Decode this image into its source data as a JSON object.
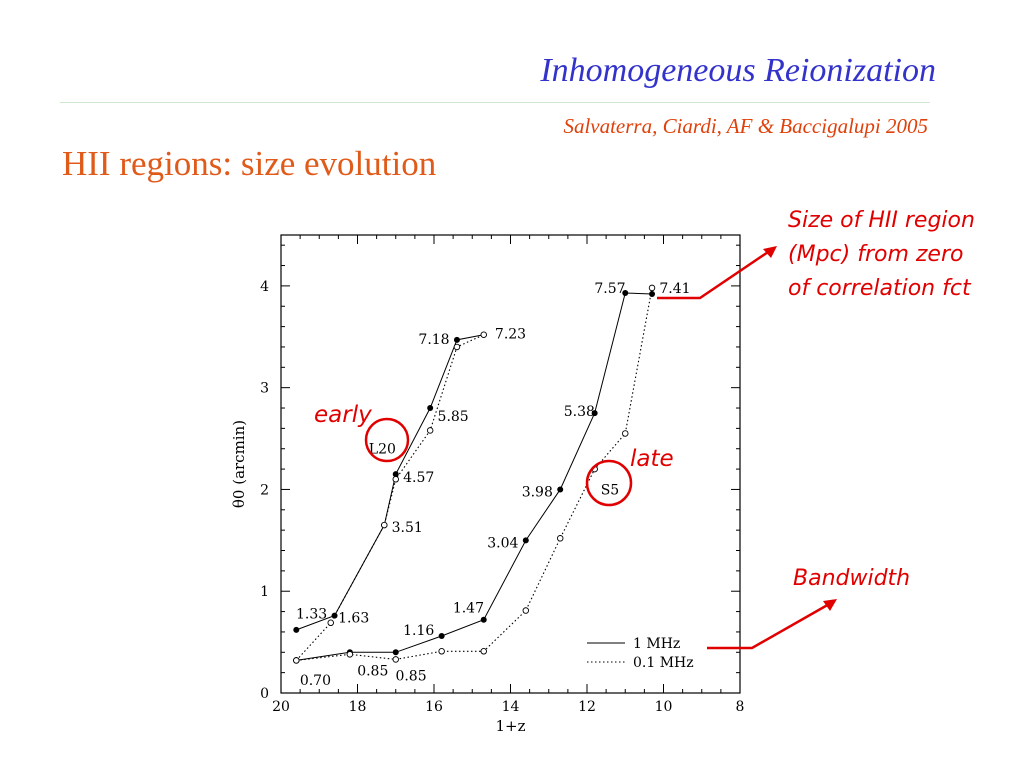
{
  "slide": {
    "title": "Inhomogeneous Reionization",
    "citation": "Salvaterra, Ciardi, AF & Baccigalupi 2005",
    "heading": "HII regions: size evolution"
  },
  "annotations": {
    "size_note": [
      "Size of HII region",
      "(Mpc) from zero",
      "of correlation fct"
    ],
    "bandwidth_note": "Bandwidth",
    "early": "early",
    "late": "late",
    "color": "#e00000"
  },
  "chart_data": {
    "type": "line",
    "xlabel": "1+z",
    "ylabel": "θ0 (arcmin)",
    "xlim": [
      20,
      8
    ],
    "ylim": [
      0,
      4.5
    ],
    "xticks": [
      20,
      18,
      16,
      14,
      12,
      10,
      8
    ],
    "yticks": [
      0,
      1,
      2,
      3,
      4
    ],
    "legend": {
      "position": "bottom-right",
      "entries": [
        "1 MHz",
        "0.1 MHz"
      ]
    },
    "models": [
      "L20",
      "S5"
    ],
    "series": [
      {
        "name": "1 MHz",
        "model": "L20",
        "style": "solid",
        "x": [
          19.6,
          18.6,
          17.3,
          17.0,
          16.1,
          15.4,
          14.7
        ],
        "y": [
          0.62,
          0.76,
          1.65,
          2.15,
          2.8,
          3.47,
          3.52
        ]
      },
      {
        "name": "0.1 MHz",
        "model": "L20",
        "style": "dotted",
        "x": [
          19.6,
          18.7,
          17.3,
          17.0,
          16.1,
          15.4,
          14.7
        ],
        "y": [
          0.32,
          0.69,
          1.65,
          2.1,
          2.58,
          3.4,
          3.52
        ]
      },
      {
        "name": "1 MHz",
        "model": "S5",
        "style": "solid",
        "x": [
          19.6,
          18.2,
          17.0,
          15.8,
          14.7,
          13.6,
          12.7,
          11.8,
          11.0,
          10.3
        ],
        "y": [
          0.32,
          0.4,
          0.4,
          0.56,
          0.72,
          1.5,
          2.0,
          2.75,
          3.93,
          3.92
        ]
      },
      {
        "name": "0.1 MHz",
        "model": "S5",
        "style": "dotted",
        "x": [
          19.6,
          18.2,
          17.0,
          15.8,
          14.7,
          13.6,
          12.7,
          11.8,
          11.0,
          10.3
        ],
        "y": [
          0.32,
          0.38,
          0.33,
          0.41,
          0.41,
          0.81,
          1.52,
          2.2,
          2.55,
          3.98
        ]
      }
    ],
    "point_labels": [
      {
        "text": "1.33",
        "x": 19.2,
        "y": 0.78
      },
      {
        "text": "1.63",
        "x": 18.1,
        "y": 0.74
      },
      {
        "text": "3.51",
        "x": 16.7,
        "y": 1.63
      },
      {
        "text": "4.57",
        "x": 16.4,
        "y": 2.12
      },
      {
        "text": "5.85",
        "x": 15.5,
        "y": 2.72
      },
      {
        "text": "7.18",
        "x": 16.0,
        "y": 3.48
      },
      {
        "text": "7.23",
        "x": 14.0,
        "y": 3.53
      },
      {
        "text": "0.70",
        "x": 19.1,
        "y": 0.13
      },
      {
        "text": "0.85",
        "x": 17.6,
        "y": 0.22
      },
      {
        "text": "0.85",
        "x": 16.6,
        "y": 0.17
      },
      {
        "text": "1.16",
        "x": 16.4,
        "y": 0.62
      },
      {
        "text": "1.47",
        "x": 15.1,
        "y": 0.84
      },
      {
        "text": "3.04",
        "x": 14.2,
        "y": 1.48
      },
      {
        "text": "3.98",
        "x": 13.3,
        "y": 1.98
      },
      {
        "text": "5.38",
        "x": 12.2,
        "y": 2.77
      },
      {
        "text": "7.57",
        "x": 11.4,
        "y": 3.98
      },
      {
        "text": "7.41",
        "x": 9.7,
        "y": 3.98
      }
    ]
  }
}
